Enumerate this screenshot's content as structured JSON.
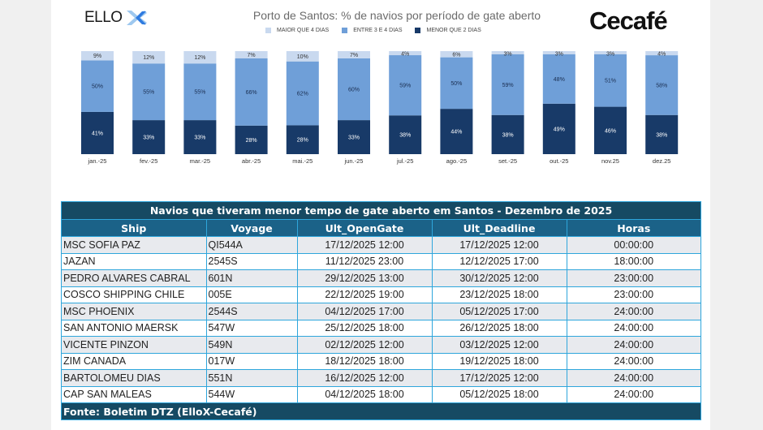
{
  "logos": {
    "left": "ELLO",
    "left_icon": "ellox-x-icon",
    "right": "Cecafé"
  },
  "colors": {
    "maior_4": "#c9d9ef",
    "entre_3_4": "#6f9fd8",
    "menor_2": "#183a68",
    "table_title_bg": "#164a63",
    "table_header_bg": "#1b6288",
    "table_border": "#2ea6dc"
  },
  "chart_data": {
    "type": "bar",
    "stacked": true,
    "title": "Porto de Santos: % de navios por período de gate aberto",
    "xlabel": "",
    "ylabel": "",
    "ylim": [
      0,
      100
    ],
    "legend_position": "top-center",
    "grid": false,
    "categories": [
      "jan.-25",
      "fev.-25",
      "mar.-25",
      "abr.-25",
      "mai.-25",
      "jun.-25",
      "jul.-25",
      "ago.-25",
      "set.-25",
      "out.-25",
      "nov.25",
      "dez.25"
    ],
    "series": [
      {
        "name": "MENOR QUE 2 DIAS",
        "color_key": "menor_2",
        "values": [
          41,
          33,
          33,
          28,
          28,
          33,
          38,
          44,
          38,
          49,
          46,
          38
        ]
      },
      {
        "name": "ENTRE 3 E 4 DIAS",
        "color_key": "entre_3_4",
        "values": [
          50,
          55,
          55,
          66,
          62,
          60,
          59,
          50,
          59,
          48,
          51,
          58
        ]
      },
      {
        "name": "MAIOR QUE 4 DIAS",
        "color_key": "maior_4",
        "values": [
          9,
          12,
          12,
          7,
          10,
          7,
          4,
          6,
          3,
          3,
          3,
          4
        ]
      }
    ],
    "legend": [
      "MAIOR QUE 4 DIAS",
      "ENTRE 3 E 4 DIAS",
      "MENOR QUE 2 DIAS"
    ]
  },
  "table": {
    "title": "Navios que tiveram menor tempo de gate aberto em Santos - Dezembro de 2025",
    "columns": [
      "Ship",
      "Voyage",
      "Ult_OpenGate",
      "Ult_Deadline",
      "Horas"
    ],
    "rows": [
      [
        "MSC SOFIA PAZ",
        "QI544A",
        "17/12/2025 12:00",
        "17/12/2025 12:00",
        "00:00:00"
      ],
      [
        "JAZAN",
        "2545S",
        "11/12/2025 23:00",
        "12/12/2025 17:00",
        "18:00:00"
      ],
      [
        "PEDRO ALVARES CABRAL",
        "601N",
        "29/12/2025 13:00",
        "30/12/2025 12:00",
        "23:00:00"
      ],
      [
        "COSCO SHIPPING CHILE",
        "005E",
        "22/12/2025 19:00",
        "23/12/2025 18:00",
        "23:00:00"
      ],
      [
        "MSC PHOENIX",
        "2544S",
        "04/12/2025 17:00",
        "05/12/2025 17:00",
        "24:00:00"
      ],
      [
        "SAN ANTONIO MAERSK",
        "547W",
        "25/12/2025 18:00",
        "26/12/2025 18:00",
        "24:00:00"
      ],
      [
        "VICENTE PINZON",
        "549N",
        "02/12/2025 12:00",
        "03/12/2025 12:00",
        "24:00:00"
      ],
      [
        "ZIM CANADA",
        "017W",
        "18/12/2025 18:00",
        "19/12/2025 18:00",
        "24:00:00"
      ],
      [
        "BARTOLOMEU DIAS",
        "551N",
        "16/12/2025 12:00",
        "17/12/2025 12:00",
        "24:00:00"
      ],
      [
        "CAP SAN MALEAS",
        "544W",
        "04/12/2025 18:00",
        "05/12/2025 18:00",
        "24:00:00"
      ]
    ],
    "footer": "Fonte: Boletim DTZ (ElloX-Cecafé)"
  }
}
